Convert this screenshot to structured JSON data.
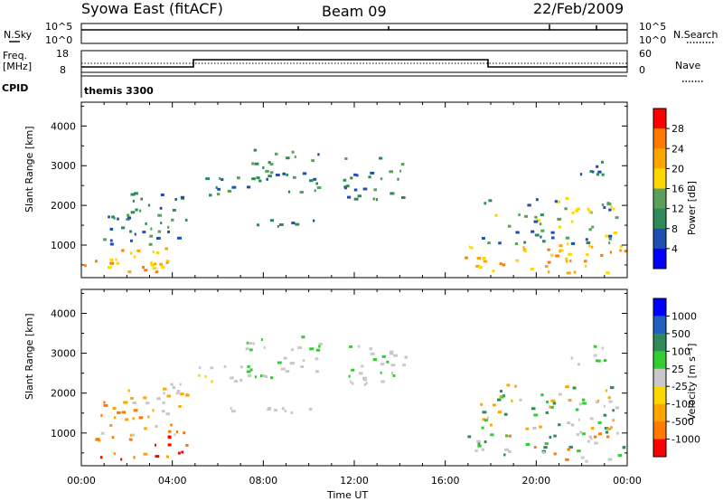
{
  "header": {
    "station": "Syowa East (fitACF)",
    "beam": "Beam 09",
    "date": "22/Feb/2009"
  },
  "strip_panels": {
    "nsky": {
      "label": "N.Sky",
      "right_label": "N.Search",
      "left_ticks": [
        "10^5",
        "10^0"
      ],
      "right_ticks": [
        "10^5",
        "10^0"
      ]
    },
    "freq": {
      "label_line1": "Freq.",
      "label_line2": "[MHz]",
      "left_ticks": [
        "18",
        "8"
      ],
      "right_ticks": [
        "60",
        "0"
      ],
      "right_label": "Nave"
    },
    "cpid": {
      "label": "CPID",
      "value": "themis 3300"
    }
  },
  "x_axis": {
    "ticks": [
      "00:00",
      "04:00",
      "08:00",
      "12:00",
      "16:00",
      "20:00",
      "00:00"
    ],
    "label": "Time UT"
  },
  "chart_data": [
    {
      "type": "heatmap",
      "parameter": "Power",
      "ylabel": "Slant Range [km]",
      "yticks": [
        "1000",
        "2000",
        "3000",
        "4000"
      ],
      "ylim": [
        180,
        4600
      ],
      "xlim_hours": [
        0,
        24
      ],
      "colorbar": {
        "label": "Power [dB]",
        "ticks": [
          "28",
          "24",
          "20",
          "16",
          "12",
          "8",
          "4"
        ],
        "colors": [
          "#ff0000",
          "#ff7a00",
          "#ffa500",
          "#ffd700",
          "#5aa05a",
          "#2e8b57",
          "#1e50b4",
          "#0000ff"
        ]
      },
      "regions": [
        {
          "t0": 0.1,
          "t1": 4.6,
          "r0": 300,
          "r1": 900,
          "v": [
            24,
            28,
            20
          ]
        },
        {
          "t0": 0.8,
          "t1": 4.6,
          "r0": 900,
          "r1": 1800,
          "v": [
            12,
            16,
            8
          ]
        },
        {
          "t0": 2.0,
          "t1": 5.0,
          "r0": 1800,
          "r1": 2300,
          "v": [
            8,
            12,
            16
          ]
        },
        {
          "t0": 5.0,
          "t1": 7.0,
          "r0": 2200,
          "r1": 2700,
          "v": [
            16,
            12,
            8
          ]
        },
        {
          "t0": 6.0,
          "t1": 10.5,
          "r0": 1450,
          "r1": 1650,
          "v": [
            12,
            8
          ]
        },
        {
          "t0": 7.0,
          "t1": 10.5,
          "r0": 2300,
          "r1": 3400,
          "v": [
            8,
            12,
            16
          ]
        },
        {
          "t0": 11.5,
          "t1": 14.3,
          "r0": 2100,
          "r1": 3200,
          "v": [
            12,
            8,
            16
          ]
        },
        {
          "t0": 16.8,
          "t1": 23.9,
          "r0": 250,
          "r1": 1000,
          "v": [
            24,
            20,
            28
          ]
        },
        {
          "t0": 17.5,
          "t1": 23.5,
          "r0": 1000,
          "r1": 2200,
          "v": [
            16,
            20,
            12,
            8
          ]
        },
        {
          "t0": 21.5,
          "t1": 23.0,
          "r0": 2600,
          "r1": 3200,
          "v": [
            8,
            12
          ]
        }
      ]
    },
    {
      "type": "heatmap",
      "parameter": "Velocity",
      "ylabel": "Slant Range [km]",
      "yticks": [
        "1000",
        "2000",
        "3000",
        "4000"
      ],
      "ylim": [
        180,
        4600
      ],
      "xlim_hours": [
        0,
        24
      ],
      "colorbar": {
        "label": "Velocity [m s⁻¹]",
        "ticks": [
          "1000",
          "500",
          "100",
          "25",
          "-25",
          "-100",
          "-500",
          "-1000"
        ],
        "colors": [
          "#0000ff",
          "#2060c0",
          "#2e8b57",
          "#32cd32",
          "#c8c8c8",
          "#ffd700",
          "#ffa500",
          "#ff7a00",
          "#ff0000"
        ]
      },
      "regions": [
        {
          "t0": 0.1,
          "t1": 4.6,
          "r0": 300,
          "r1": 900,
          "v": [
            -500,
            -100,
            -1000
          ]
        },
        {
          "t0": 0.8,
          "t1": 4.6,
          "r0": 900,
          "r1": 1800,
          "v": [
            -100,
            -500,
            0
          ]
        },
        {
          "t0": 2.0,
          "t1": 5.0,
          "r0": 1800,
          "r1": 2300,
          "v": [
            0,
            -100
          ]
        },
        {
          "t0": 5.0,
          "t1": 7.0,
          "r0": 2200,
          "r1": 2700,
          "v": [
            0,
            0,
            -25
          ]
        },
        {
          "t0": 6.0,
          "t1": 10.5,
          "r0": 1450,
          "r1": 1650,
          "v": [
            0,
            0
          ]
        },
        {
          "t0": 7.0,
          "t1": 10.5,
          "r0": 2300,
          "r1": 3400,
          "v": [
            0,
            0,
            100
          ]
        },
        {
          "t0": 11.5,
          "t1": 14.3,
          "r0": 2100,
          "r1": 3200,
          "v": [
            0,
            0,
            100
          ]
        },
        {
          "t0": 16.8,
          "t1": 23.9,
          "r0": 250,
          "r1": 1000,
          "v": [
            100,
            500,
            -500,
            0
          ]
        },
        {
          "t0": 17.5,
          "t1": 23.5,
          "r0": 1000,
          "r1": 2200,
          "v": [
            100,
            500,
            0,
            -100
          ]
        },
        {
          "t0": 21.5,
          "t1": 23.0,
          "r0": 2600,
          "r1": 3200,
          "v": [
            0,
            100
          ]
        }
      ]
    }
  ]
}
